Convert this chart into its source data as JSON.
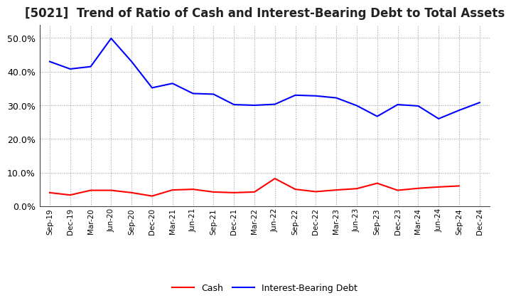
{
  "title": "[5021]  Trend of Ratio of Cash and Interest-Bearing Debt to Total Assets",
  "x_labels": [
    "Sep-19",
    "Dec-19",
    "Mar-20",
    "Jun-20",
    "Sep-20",
    "Dec-20",
    "Mar-21",
    "Jun-21",
    "Sep-21",
    "Dec-21",
    "Mar-22",
    "Jun-22",
    "Sep-22",
    "Dec-22",
    "Mar-23",
    "Jun-23",
    "Sep-23",
    "Dec-23",
    "Mar-24",
    "Jun-24",
    "Sep-24",
    "Dec-24"
  ],
  "cash": [
    0.04,
    0.033,
    0.047,
    0.047,
    0.04,
    0.03,
    0.048,
    0.05,
    0.042,
    0.04,
    0.042,
    0.082,
    0.05,
    0.043,
    0.048,
    0.052,
    0.068,
    0.047,
    0.053,
    0.057,
    0.06,
    null
  ],
  "interest_bearing_debt": [
    0.43,
    0.408,
    0.415,
    0.499,
    0.43,
    0.352,
    0.365,
    0.335,
    0.333,
    0.302,
    0.3,
    0.303,
    0.33,
    0.328,
    0.322,
    0.299,
    0.267,
    0.302,
    0.298,
    0.26,
    0.285,
    0.308
  ],
  "cash_color": "#ff0000",
  "debt_color": "#0000ff",
  "ylim": [
    0.0,
    0.54
  ],
  "yticks": [
    0.0,
    0.1,
    0.2,
    0.3,
    0.4,
    0.5
  ],
  "background_color": "#ffffff",
  "grid_color": "#999999",
  "title_fontsize": 12,
  "legend_cash": "Cash",
  "legend_debt": "Interest-Bearing Debt",
  "line_width": 1.5
}
